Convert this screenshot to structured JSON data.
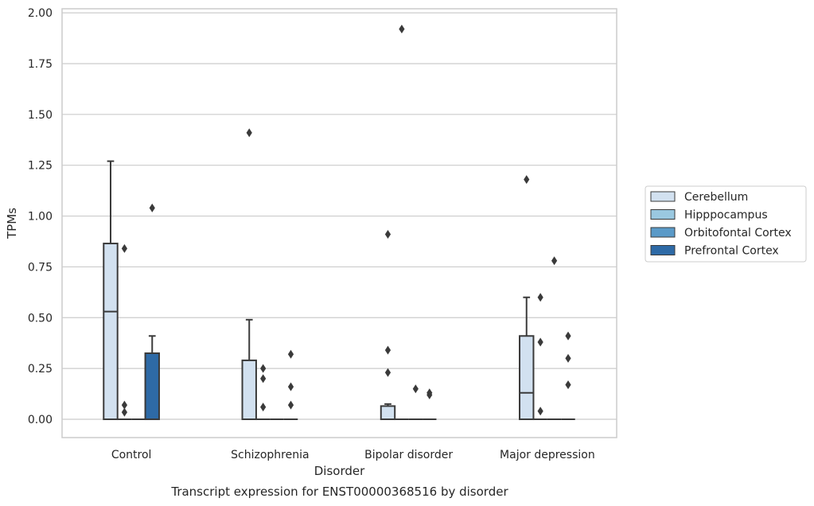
{
  "chart_data": {
    "type": "box",
    "title": "",
    "caption": "Transcript expression for ENST00000368516 by disorder",
    "xlabel": "Disorder",
    "ylabel": "TPMs",
    "ylim": [
      -0.09,
      2.02
    ],
    "yticks": [
      0.0,
      0.25,
      0.5,
      0.75,
      1.0,
      1.25,
      1.5,
      1.75,
      2.0
    ],
    "ytick_labels": [
      "0.00",
      "0.25",
      "0.50",
      "0.75",
      "1.00",
      "1.25",
      "1.50",
      "1.75",
      "2.00"
    ],
    "categories": [
      "Control",
      "Schizophrenia",
      "Bipolar disorder",
      "Major depression"
    ],
    "grid": true,
    "legend_position": "right",
    "series": [
      {
        "name": "Cerebellum",
        "color": "#d2e1f0",
        "boxes": [
          {
            "q1": 0.0,
            "median": 0.53,
            "q3": 0.865,
            "whisker_low": 0.0,
            "whisker_high": 1.27,
            "outliers": []
          },
          {
            "q1": 0.0,
            "median": 0.0,
            "q3": 0.29,
            "whisker_low": 0.0,
            "whisker_high": 0.49,
            "outliers": [
              1.41
            ]
          },
          {
            "q1": 0.0,
            "median": 0.0,
            "q3": 0.065,
            "whisker_low": 0.0,
            "whisker_high": 0.075,
            "outliers": [
              0.23,
              0.34,
              0.91
            ]
          },
          {
            "q1": 0.0,
            "median": 0.13,
            "q3": 0.41,
            "whisker_low": 0.0,
            "whisker_high": 0.6,
            "outliers": [
              1.18
            ]
          }
        ]
      },
      {
        "name": "Hipppocampus",
        "color": "#9ac8e0",
        "boxes": [
          {
            "q1": 0.0,
            "median": 0.0,
            "q3": 0.0,
            "whisker_low": 0.0,
            "whisker_high": 0.0,
            "outliers": [
              0.84,
              0.07,
              0.035
            ]
          },
          {
            "q1": 0.0,
            "median": 0.0,
            "q3": 0.0,
            "whisker_low": 0.0,
            "whisker_high": 0.0,
            "outliers": [
              0.25,
              0.2,
              0.06
            ]
          },
          {
            "q1": 0.0,
            "median": 0.0,
            "q3": 0.0,
            "whisker_low": 0.0,
            "whisker_high": 0.0,
            "outliers": [
              1.92
            ]
          },
          {
            "q1": 0.0,
            "median": 0.0,
            "q3": 0.0,
            "whisker_low": 0.0,
            "whisker_high": 0.0,
            "outliers": [
              0.6,
              0.38,
              0.04
            ]
          }
        ]
      },
      {
        "name": "Orbitofontal Cortex",
        "color": "#5a9ac8",
        "boxes": [
          {
            "q1": 0.0,
            "median": 0.0,
            "q3": 0.0,
            "whisker_low": 0.0,
            "whisker_high": 0.0,
            "outliers": []
          },
          {
            "q1": 0.0,
            "median": 0.0,
            "q3": 0.0,
            "whisker_low": 0.0,
            "whisker_high": 0.0,
            "outliers": []
          },
          {
            "q1": 0.0,
            "median": 0.0,
            "q3": 0.0,
            "whisker_low": 0.0,
            "whisker_high": 0.0,
            "outliers": [
              0.15
            ]
          },
          {
            "q1": 0.0,
            "median": 0.0,
            "q3": 0.0,
            "whisker_low": 0.0,
            "whisker_high": 0.0,
            "outliers": [
              0.78
            ]
          }
        ]
      },
      {
        "name": "Prefrontal Cortex",
        "color": "#2e6aa6",
        "boxes": [
          {
            "q1": 0.0,
            "median": 0.0,
            "q3": 0.325,
            "whisker_low": 0.0,
            "whisker_high": 0.41,
            "outliers": [
              1.04
            ]
          },
          {
            "q1": 0.0,
            "median": 0.0,
            "q3": 0.0,
            "whisker_low": 0.0,
            "whisker_high": 0.0,
            "outliers": [
              0.32,
              0.16,
              0.07
            ]
          },
          {
            "q1": 0.0,
            "median": 0.0,
            "q3": 0.0,
            "whisker_low": 0.0,
            "whisker_high": 0.0,
            "outliers": [
              0.13,
              0.12
            ]
          },
          {
            "q1": 0.0,
            "median": 0.0,
            "q3": 0.0,
            "whisker_low": 0.0,
            "whisker_high": 0.0,
            "outliers": [
              0.41,
              0.3,
              0.17
            ]
          }
        ]
      }
    ]
  }
}
